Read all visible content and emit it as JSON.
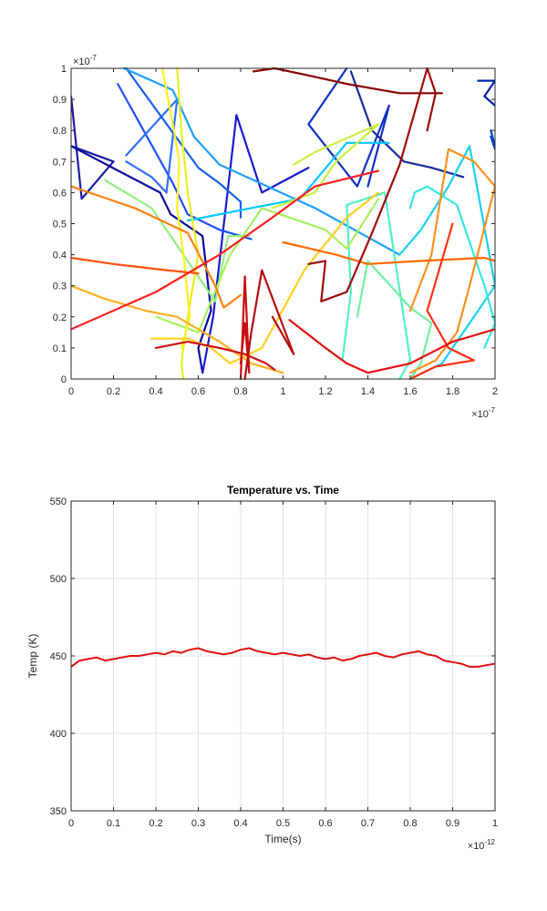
{
  "chart_data": [
    {
      "type": "line",
      "title": "",
      "xlabel": "",
      "ylabel": "",
      "xlim": [
        0,
        2
      ],
      "ylim": [
        0,
        1
      ],
      "x_exponent": "-7",
      "y_exponent": "-7",
      "grid": false,
      "xticks": [
        0,
        0.2,
        0.4,
        0.6,
        0.8,
        1,
        1.2,
        1.4,
        1.6,
        1.8,
        2
      ],
      "xtick_labels": [
        "0",
        "0.2",
        "0.4",
        "0.6",
        "0.8",
        "1",
        "1.2",
        "1.4",
        "1.6",
        "1.8",
        "2"
      ],
      "yticks": [
        0,
        0.1,
        0.2,
        0.3,
        0.4,
        0.5,
        0.6,
        0.7,
        0.8,
        0.9,
        1
      ],
      "ytick_labels": [
        "0",
        "0.1",
        "0.2",
        "0.3",
        "0.4",
        "0.5",
        "0.6",
        "0.7",
        "0.8",
        "0.9",
        "1"
      ],
      "series": [
        {
          "color": "#1a1aa8",
          "x": [
            0.0,
            0.05,
            0.2,
            0.0
          ],
          "y": [
            0.91,
            0.58,
            0.7,
            0.75
          ]
        },
        {
          "color": "#0a0a9a",
          "x": [
            0.0,
            0.42,
            0.47,
            0.62,
            0.66,
            0.6,
            0.62
          ],
          "y": [
            0.75,
            0.6,
            0.53,
            0.46,
            0.22,
            0.1,
            0.02
          ]
        },
        {
          "color": "#1a1ad0",
          "x": [
            0.62,
            0.67,
            0.78,
            0.9,
            1.12
          ],
          "y": [
            0.02,
            0.2,
            0.85,
            0.6,
            0.68
          ]
        },
        {
          "color": "#1030c8",
          "x": [
            1.3,
            1.12,
            1.35,
            1.5,
            1.4
          ],
          "y": [
            1.0,
            0.82,
            0.62,
            0.88,
            0.62
          ]
        },
        {
          "color": "#1a2a9a",
          "x": [
            1.32,
            1.42,
            1.57,
            1.7,
            1.85
          ],
          "y": [
            0.99,
            0.8,
            0.7,
            0.68,
            0.65
          ]
        },
        {
          "color": "#1e50ff",
          "x": [
            0.22,
            0.48,
            0.55,
            0.7,
            0.85
          ],
          "y": [
            0.95,
            0.63,
            0.53,
            0.48,
            0.45
          ]
        },
        {
          "color": "#3070ff",
          "x": [
            0.26,
            0.5,
            0.45,
            0.38,
            0.26
          ],
          "y": [
            0.72,
            0.9,
            0.6,
            0.65,
            0.7
          ]
        },
        {
          "color": "#1560e8",
          "x": [
            0.26,
            0.6,
            0.7,
            0.8,
            0.8
          ],
          "y": [
            1.0,
            0.68,
            0.63,
            0.57,
            0.52
          ]
        },
        {
          "color": "#1ea0ff",
          "x": [
            0.25,
            0.48,
            0.58,
            0.7,
            1.15,
            1.55
          ],
          "y": [
            1.0,
            0.93,
            0.78,
            0.69,
            0.55,
            0.4
          ]
        },
        {
          "color": "#00c8ff",
          "x": [
            0.55,
            0.85,
            1.08,
            1.3,
            1.5
          ],
          "y": [
            0.51,
            0.55,
            0.58,
            0.76,
            0.76
          ]
        },
        {
          "color": "#1ad0f0",
          "x": [
            1.55,
            1.65,
            1.78,
            1.88,
            2.0,
            1.75,
            1.6
          ],
          "y": [
            0.4,
            0.48,
            0.62,
            0.75,
            0.3,
            0.05,
            0.0
          ]
        },
        {
          "color": "#35e8e0",
          "x": [
            1.6,
            1.62,
            1.68,
            1.82,
            1.95,
            2.0,
            1.95
          ],
          "y": [
            0.55,
            0.6,
            0.62,
            0.56,
            0.3,
            0.18,
            0.1
          ]
        },
        {
          "color": "#50f0c8",
          "x": [
            1.2,
            1.28,
            1.32,
            1.3,
            1.48,
            1.6,
            1.55
          ],
          "y": [
            0.1,
            0.06,
            0.28,
            0.56,
            0.6,
            0.06,
            0.0
          ]
        },
        {
          "color": "#70f0a0",
          "x": [
            1.35,
            1.4,
            1.6,
            1.7,
            1.65,
            1.6
          ],
          "y": [
            0.2,
            0.38,
            0.23,
            0.18,
            0.05,
            0.0
          ]
        },
        {
          "color": "#90f080",
          "x": [
            0.16,
            0.38,
            0.58,
            0.68,
            0.74,
            0.84
          ],
          "y": [
            0.64,
            0.55,
            0.35,
            0.25,
            0.46,
            0.46
          ]
        },
        {
          "color": "#a8f060",
          "x": [
            0.4,
            0.6,
            0.75,
            0.9,
            1.2,
            1.3,
            1.45
          ],
          "y": [
            0.2,
            0.15,
            0.4,
            0.55,
            0.48,
            0.42,
            0.58
          ]
        },
        {
          "color": "#c8f040",
          "x": [
            1.05,
            1.15,
            1.45,
            1.25,
            1.15,
            0.95
          ],
          "y": [
            0.69,
            0.73,
            0.82,
            0.7,
            0.6,
            0.55
          ]
        },
        {
          "color": "#e8f020",
          "x": [
            0.5,
            0.52,
            0.55,
            0.6,
            0.55,
            0.52,
            0.53
          ],
          "y": [
            1.0,
            0.8,
            0.6,
            0.4,
            0.2,
            0.05,
            0.0
          ]
        },
        {
          "color": "#fff020",
          "x": [
            0.43,
            0.48,
            0.51,
            0.5,
            0.53,
            0.56,
            0.52
          ],
          "y": [
            1.0,
            0.82,
            0.7,
            0.55,
            0.4,
            0.2,
            0.1
          ]
        },
        {
          "color": "#ffd020",
          "x": [
            0.38,
            0.55,
            0.66,
            0.75,
            0.9,
            1.1,
            1.3,
            1.45
          ],
          "y": [
            0.13,
            0.13,
            0.1,
            0.05,
            0.1,
            0.35,
            0.52,
            0.6
          ]
        },
        {
          "color": "#ffb020",
          "x": [
            0.0,
            0.15,
            0.35,
            0.5,
            0.7,
            0.85,
            1.0
          ],
          "y": [
            0.3,
            0.26,
            0.22,
            0.2,
            0.12,
            0.05,
            0.02
          ]
        },
        {
          "color": "#ff9020",
          "x": [
            1.6,
            1.7,
            1.78,
            1.9,
            2.0,
            1.88,
            1.82,
            1.72,
            1.6
          ],
          "y": [
            0.22,
            0.4,
            0.74,
            0.7,
            0.62,
            0.3,
            0.15,
            0.06,
            0.02
          ]
        },
        {
          "color": "#ff8010",
          "x": [
            0.0,
            0.3,
            0.55,
            0.68,
            0.72,
            0.8
          ],
          "y": [
            0.62,
            0.55,
            0.47,
            0.3,
            0.23,
            0.27
          ]
        },
        {
          "color": "#ff6a00",
          "x": [
            1.0,
            1.25,
            1.4,
            1.65,
            1.95,
            2.0
          ],
          "y": [
            0.44,
            0.4,
            0.37,
            0.38,
            0.39,
            0.38
          ]
        },
        {
          "color": "#ff5010",
          "x": [
            0.0,
            0.2,
            0.45,
            0.6
          ],
          "y": [
            0.39,
            0.37,
            0.35,
            0.34
          ]
        },
        {
          "color": "#ff3010",
          "x": [
            1.8,
            1.68,
            1.78,
            1.9,
            1.72,
            1.6
          ],
          "y": [
            0.5,
            0.22,
            0.1,
            0.06,
            0.04,
            0.0
          ]
        },
        {
          "color": "#ff2020",
          "x": [
            0.0,
            0.4,
            0.7,
            0.95,
            1.15,
            1.45
          ],
          "y": [
            0.16,
            0.28,
            0.4,
            0.52,
            0.62,
            0.67
          ]
        },
        {
          "color": "#e81010",
          "x": [
            1.03,
            1.2,
            1.3,
            1.4,
            1.6,
            1.8,
            2.0
          ],
          "y": [
            0.19,
            0.1,
            0.05,
            0.02,
            0.05,
            0.12,
            0.16
          ]
        },
        {
          "color": "#d01010",
          "x": [
            0.4,
            0.55,
            0.7,
            0.82,
            0.92,
            0.96
          ],
          "y": [
            0.1,
            0.12,
            0.1,
            0.08,
            0.05,
            0.03
          ]
        },
        {
          "color": "#c80e0e",
          "x": [
            0.8,
            0.82,
            0.84,
            0.82,
            0.8
          ],
          "y": [
            0.0,
            0.33,
            0.02,
            0.18,
            0.05
          ]
        },
        {
          "color": "#b80c0c",
          "x": [
            0.82,
            0.85,
            0.9,
            1.05,
            0.95
          ],
          "y": [
            0.0,
            0.15,
            0.35,
            0.08,
            0.2
          ]
        },
        {
          "color": "#a00808",
          "x": [
            1.12,
            1.2,
            1.18,
            1.3,
            1.42,
            1.55,
            1.68,
            1.72,
            1.68
          ],
          "y": [
            0.37,
            0.38,
            0.25,
            0.28,
            0.47,
            0.69,
            1.0,
            0.92,
            0.8
          ]
        },
        {
          "color": "#8b0000",
          "x": [
            0.86,
            0.96,
            1.1,
            1.3,
            1.55,
            1.75
          ],
          "y": [
            0.99,
            1.0,
            0.98,
            0.95,
            0.92,
            0.92
          ]
        },
        {
          "color": "#0020b0",
          "x": [
            1.92,
            2.0,
            1.95,
            2.0
          ],
          "y": [
            0.96,
            0.96,
            0.91,
            0.88
          ]
        },
        {
          "color": "#0040d0",
          "x": [
            1.98,
            2.0,
            1.98,
            2.0
          ],
          "y": [
            0.8,
            0.75,
            0.78,
            0.74
          ]
        }
      ]
    },
    {
      "type": "line",
      "title": "Temperature vs. Time",
      "xlabel": "Time(s)",
      "ylabel": "Temp (K)",
      "xlim": [
        0,
        1
      ],
      "ylim": [
        350,
        550
      ],
      "x_exponent": "-12",
      "grid": true,
      "xticks": [
        0,
        0.1,
        0.2,
        0.3,
        0.4,
        0.5,
        0.6,
        0.7,
        0.8,
        0.9,
        1
      ],
      "xtick_labels": [
        "0",
        "0.1",
        "0.2",
        "0.3",
        "0.4",
        "0.5",
        "0.6",
        "0.7",
        "0.8",
        "0.9",
        "1"
      ],
      "yticks": [
        350,
        400,
        450,
        500,
        550
      ],
      "ytick_labels": [
        "350",
        "400",
        "450",
        "500",
        "550"
      ],
      "series": [
        {
          "color": "#e01010",
          "x": [
            0.0,
            0.02,
            0.04,
            0.06,
            0.08,
            0.1,
            0.12,
            0.14,
            0.16,
            0.18,
            0.2,
            0.22,
            0.24,
            0.26,
            0.28,
            0.3,
            0.32,
            0.34,
            0.36,
            0.38,
            0.4,
            0.42,
            0.44,
            0.46,
            0.48,
            0.5,
            0.52,
            0.54,
            0.56,
            0.58,
            0.6,
            0.62,
            0.64,
            0.66,
            0.68,
            0.7,
            0.72,
            0.74,
            0.76,
            0.78,
            0.8,
            0.82,
            0.84,
            0.86,
            0.88,
            0.9,
            0.92,
            0.94,
            0.96,
            0.98,
            1.0
          ],
          "y": [
            443,
            447,
            448,
            449,
            447,
            448,
            449,
            450,
            450,
            451,
            452,
            451,
            453,
            452,
            454,
            455,
            453,
            452,
            451,
            452,
            454,
            455,
            453,
            452,
            451,
            452,
            451,
            450,
            451,
            449,
            448,
            449,
            447,
            448,
            450,
            451,
            452,
            450,
            449,
            451,
            452,
            453,
            451,
            450,
            447,
            446,
            445,
            443,
            443,
            444,
            445
          ]
        }
      ]
    }
  ]
}
